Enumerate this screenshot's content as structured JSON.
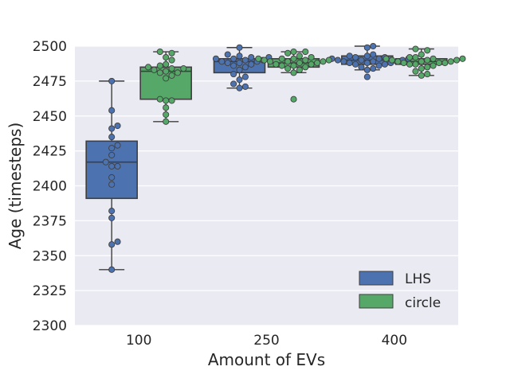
{
  "chart_data": {
    "type": "box",
    "title": "",
    "xlabel": "Amount of EVs",
    "ylabel": "Age (timesteps)",
    "ylim": [
      2300,
      2500
    ],
    "y_ticks": [
      2300,
      2325,
      2350,
      2375,
      2400,
      2425,
      2450,
      2475,
      2500
    ],
    "categories": [
      "100",
      "250",
      "400"
    ],
    "grid": true,
    "legend_position": "bottom-right",
    "colors": {
      "LHS": "#4c72b0",
      "circle": "#55a868",
      "background": "#eaeaf2",
      "grid": "#ffffff",
      "edge": "#3f3f3f"
    },
    "series": [
      {
        "name": "LHS",
        "boxes": [
          {
            "category": "100",
            "whisker_low": 2340,
            "q1": 2391,
            "median": 2417,
            "q3": 2432,
            "whisker_high": 2475,
            "points": [
              2475,
              2454,
              2443,
              2441,
              2435,
              2429,
              2427,
              2422,
              2417,
              2414,
              2414,
              2406,
              2401,
              2382,
              2377,
              2360,
              2358,
              2340
            ]
          },
          {
            "category": "250",
            "whisker_low": 2470,
            "q1": 2481,
            "median": 2489,
            "q3": 2491,
            "whisker_high": 2499,
            "points": [
              2499,
              2494,
              2493,
              2492,
              2492,
              2491,
              2491,
              2490,
              2490,
              2489,
              2489,
              2488,
              2488,
              2487,
              2486,
              2485,
              2483,
              2480,
              2478,
              2476,
              2473,
              2471,
              2470
            ]
          },
          {
            "category": "400",
            "whisker_low": 2483,
            "q1": 2487,
            "median": 2490,
            "q3": 2493,
            "whisker_high": 2500,
            "points": [
              2500,
              2499,
              2494,
              2493,
              2493,
              2492,
              2492,
              2491,
              2491,
              2491,
              2490,
              2490,
              2490,
              2489,
              2489,
              2489,
              2488,
              2488,
              2488,
              2487,
              2487,
              2486,
              2485,
              2484,
              2483,
              2478
            ]
          }
        ]
      },
      {
        "name": "circle",
        "boxes": [
          {
            "category": "100",
            "whisker_low": 2446,
            "q1": 2462,
            "median": 2482,
            "q3": 2485,
            "whisker_high": 2496,
            "points": [
              2496,
              2495,
              2492,
              2490,
              2487,
              2486,
              2485,
              2484,
              2484,
              2483,
              2482,
              2481,
              2481,
              2479,
              2477,
              2462,
              2461,
              2461,
              2456,
              2451,
              2446
            ]
          },
          {
            "category": "250",
            "whisker_low": 2481,
            "q1": 2485,
            "median": 2488,
            "q3": 2491,
            "whisker_high": 2496,
            "points": [
              2496,
              2496,
              2495,
              2493,
              2492,
              2491,
              2491,
              2491,
              2490,
              2490,
              2490,
              2489,
              2489,
              2489,
              2488,
              2488,
              2487,
              2487,
              2486,
              2486,
              2485,
              2484,
              2483,
              2481,
              2462
            ]
          },
          {
            "category": "400",
            "whisker_low": 2479,
            "q1": 2487,
            "median": 2489,
            "q3": 2491,
            "whisker_high": 2498,
            "points": [
              2498,
              2497,
              2494,
              2492,
              2492,
              2491,
              2491,
              2491,
              2490,
              2490,
              2490,
              2489,
              2489,
              2489,
              2488,
              2488,
              2488,
              2487,
              2487,
              2486,
              2485,
              2484,
              2482,
              2480,
              2479
            ]
          }
        ]
      }
    ]
  }
}
